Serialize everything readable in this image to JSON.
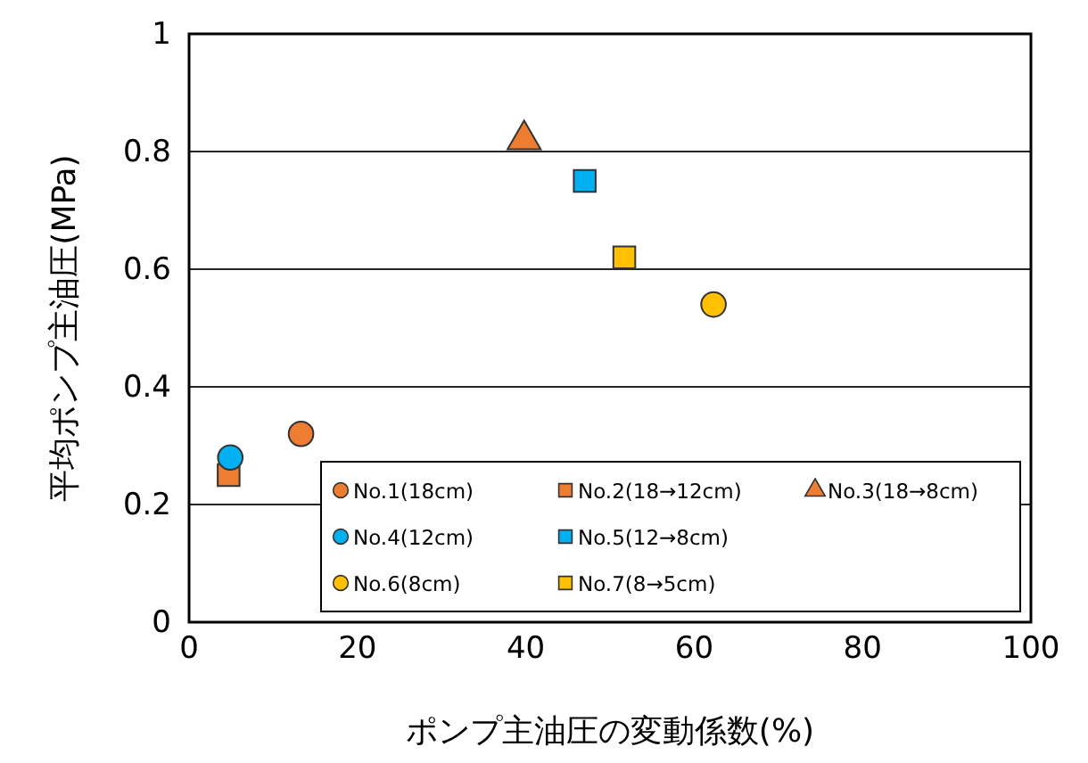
{
  "chart_data": {
    "type": "scatter",
    "xlabel": "ポンプ主油圧の変動係数(%)",
    "ylabel": "平均ポンプ主油圧(MPa)",
    "xlim": [
      0,
      100
    ],
    "xticks": [
      0,
      20,
      40,
      60,
      80,
      100
    ],
    "ylim": [
      0,
      1
    ],
    "yticks": [
      0,
      {
        "value": 0.2,
        "label": "0.2"
      },
      {
        "value": 0.4,
        "label": "0.4"
      },
      {
        "value": 0.6,
        "label": "0.6"
      },
      {
        "value": 0.8,
        "label": "0.8"
      },
      1
    ],
    "grid": "y",
    "legend": "bottom right",
    "series": [
      {
        "name": "No.1(18cm)",
        "color": "#ed7d31",
        "marker": "circle",
        "x": [
          13.3
        ],
        "values": [
          0.32
        ]
      },
      {
        "name": "No.2(18→12cm)",
        "color": "#ed7d31",
        "marker": "square",
        "x": [
          4.7
        ],
        "values": [
          0.25
        ]
      },
      {
        "name": "No.3(18→8cm)",
        "color": "#ed7d31",
        "marker": "triangle",
        "x": [
          39.8
        ],
        "values": [
          0.82
        ]
      },
      {
        "name": "No.4(12cm)",
        "color": "#00b0f0",
        "marker": "circle",
        "x": [
          4.9
        ],
        "values": [
          0.28
        ]
      },
      {
        "name": "No.5(12→8cm)",
        "color": "#00b0f0",
        "marker": "square",
        "x": [
          47
        ],
        "values": [
          0.75
        ]
      },
      {
        "name": "No.6(8cm)",
        "color": "#ffc000",
        "marker": "circle",
        "x": [
          62.3
        ],
        "values": [
          0.54
        ]
      },
      {
        "name": "No.7(8→5cm)",
        "color": "#ffc000",
        "marker": "square",
        "x": [
          51.7
        ],
        "values": [
          0.62
        ]
      }
    ]
  }
}
